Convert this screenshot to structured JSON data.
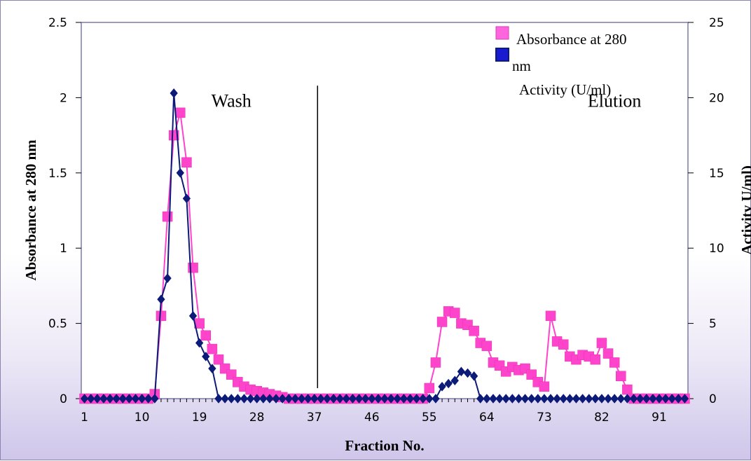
{
  "chart_data": {
    "type": "line",
    "xlabel": "Fraction No.",
    "ylabel": "Absorbance at 280 nm",
    "y2label": "Activity U/ml)",
    "xlim": [
      1,
      95
    ],
    "ylim": [
      0,
      2.5
    ],
    "y2lim": [
      0,
      25
    ],
    "x_ticks": [
      1,
      10,
      19,
      28,
      37,
      46,
      55,
      64,
      73,
      82,
      91
    ],
    "y_ticks": [
      "0",
      "0.5",
      "1",
      "1.5",
      "2",
      "2.5"
    ],
    "y2_ticks": [
      "0",
      "5",
      "10",
      "15",
      "20",
      "25"
    ],
    "grid": false,
    "legend_position": "top-right",
    "annotations": [
      {
        "text": "Wash",
        "x": 24,
        "y": 2.0
      },
      {
        "text": "Elution",
        "x": 84,
        "y": 2.0
      }
    ],
    "divider_x": 37.5,
    "series": [
      {
        "name": "Absorbance at 280 nm",
        "axis": "left",
        "color": "#ff33cc",
        "marker": "square",
        "x": [
          1,
          2,
          3,
          4,
          5,
          6,
          7,
          8,
          9,
          10,
          11,
          12,
          13,
          14,
          15,
          16,
          17,
          18,
          19,
          20,
          21,
          22,
          23,
          24,
          25,
          26,
          27,
          28,
          29,
          30,
          31,
          32,
          33,
          34,
          35,
          36,
          37,
          38,
          39,
          40,
          41,
          42,
          43,
          44,
          45,
          46,
          47,
          48,
          49,
          50,
          51,
          52,
          53,
          54,
          55,
          56,
          57,
          58,
          59,
          60,
          61,
          62,
          63,
          64,
          65,
          66,
          67,
          68,
          69,
          70,
          71,
          72,
          73,
          74,
          75,
          76,
          77,
          78,
          79,
          80,
          81,
          82,
          83,
          84,
          85,
          86,
          87,
          88,
          89,
          90,
          91,
          92,
          93,
          94,
          95
        ],
        "y": [
          0,
          0,
          0,
          0,
          0,
          0,
          0,
          0,
          0,
          0,
          0,
          0.03,
          0.55,
          1.21,
          1.75,
          1.9,
          1.57,
          0.87,
          0.5,
          0.42,
          0.33,
          0.26,
          0.2,
          0.16,
          0.11,
          0.08,
          0.06,
          0.05,
          0.04,
          0.03,
          0.02,
          0.01,
          0,
          0,
          0,
          0,
          0,
          0,
          0,
          0,
          0,
          0,
          0,
          0,
          0,
          0,
          0,
          0,
          0,
          0,
          0,
          0,
          0,
          0,
          0.07,
          0.24,
          0.51,
          0.58,
          0.57,
          0.5,
          0.49,
          0.45,
          0.37,
          0.35,
          0.24,
          0.22,
          0.18,
          0.21,
          0.19,
          0.2,
          0.16,
          0.11,
          0.08,
          0.55,
          0.38,
          0.36,
          0.28,
          0.26,
          0.29,
          0.28,
          0.26,
          0.37,
          0.3,
          0.24,
          0.15,
          0.06,
          0,
          0,
          0,
          0,
          0,
          0,
          0,
          0,
          0
        ]
      },
      {
        "name": "Activity (U/ml)",
        "axis": "right",
        "color": "#0c1a78",
        "marker": "diamond",
        "x": [
          1,
          2,
          3,
          4,
          5,
          6,
          7,
          8,
          9,
          10,
          11,
          12,
          13,
          14,
          15,
          16,
          17,
          18,
          19,
          20,
          21,
          22,
          23,
          24,
          25,
          26,
          27,
          28,
          29,
          30,
          31,
          32,
          33,
          34,
          35,
          36,
          37,
          38,
          39,
          40,
          41,
          42,
          43,
          44,
          45,
          46,
          47,
          48,
          49,
          50,
          51,
          52,
          53,
          54,
          55,
          56,
          57,
          58,
          59,
          60,
          61,
          62,
          63,
          64,
          65,
          66,
          67,
          68,
          69,
          70,
          71,
          72,
          73,
          74,
          75,
          76,
          77,
          78,
          79,
          80,
          81,
          82,
          83,
          84,
          85,
          86,
          87,
          88,
          89,
          90,
          91,
          92,
          93,
          94,
          95
        ],
        "y": [
          0,
          0,
          0,
          0,
          0,
          0,
          0,
          0,
          0,
          0,
          0,
          0,
          6.6,
          8,
          20.3,
          15,
          13.3,
          5.5,
          3.7,
          2.8,
          2,
          0,
          0,
          0,
          0,
          0,
          0,
          0,
          0,
          0,
          0,
          0,
          0,
          0,
          0,
          0,
          0,
          0,
          0,
          0,
          0,
          0,
          0,
          0,
          0,
          0,
          0,
          0,
          0,
          0,
          0,
          0,
          0,
          0,
          0,
          0,
          0.8,
          1,
          1.2,
          1.8,
          1.7,
          1.5,
          0,
          0,
          0,
          0,
          0,
          0,
          0,
          0,
          0,
          0,
          0,
          0,
          0,
          0,
          0,
          0,
          0,
          0,
          0,
          0,
          0,
          0,
          0,
          0,
          0,
          0,
          0,
          0,
          0,
          0,
          0,
          0,
          0
        ]
      }
    ],
    "legend": {
      "line1": "Absorbance at 280",
      "line2": "nm",
      "line3": "Activity (U/ml)"
    }
  }
}
